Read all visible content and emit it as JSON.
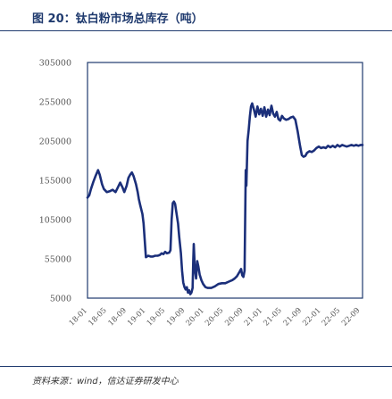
{
  "figure": {
    "title": "图 20：钛白粉市场总库存（吨）",
    "source": "资料来源：wind，信达证券研发中心"
  },
  "colors": {
    "line": "#1b2f7a",
    "frame": "#1f3a6e",
    "axis_text": "#555555"
  },
  "chart_data": {
    "type": "line",
    "title": "",
    "xlabel": "",
    "ylabel": "",
    "ylim": [
      5000,
      305000
    ],
    "yticks": [
      5000,
      55000,
      105000,
      155000,
      205000,
      255000,
      305000
    ],
    "ytick_labels": [
      "5000",
      "55000",
      "105000",
      "155000",
      "205000",
      "255000",
      "305000"
    ],
    "xlim": [
      2018.0,
      2022.71
    ],
    "xticks": [
      2018.0,
      2018.33,
      2018.67,
      2019.0,
      2019.33,
      2019.67,
      2020.0,
      2020.33,
      2020.67,
      2021.0,
      2021.33,
      2021.67,
      2022.0,
      2022.33,
      2022.67
    ],
    "xtick_labels": [
      "18-01",
      "18-05",
      "18-09",
      "19-01",
      "19-05",
      "19-09",
      "20-01",
      "20-05",
      "20-09",
      "21-01",
      "21-05",
      "21-09",
      "22-01",
      "22-05",
      "22-09"
    ],
    "grid": false,
    "legend": "none",
    "series": [
      {
        "x": [
          2018.0,
          2018.03,
          2018.06,
          2018.1,
          2018.14,
          2018.18,
          2018.21,
          2018.25,
          2018.28,
          2018.33,
          2018.38,
          2018.43,
          2018.48,
          2018.52,
          2018.56,
          2018.6,
          2018.63,
          2018.67,
          2018.7,
          2018.73,
          2018.76,
          2018.79,
          2018.83,
          2018.86,
          2018.88,
          2018.9,
          2018.92,
          2018.94,
          2018.96,
          2019.0,
          2019.04,
          2019.08,
          2019.12,
          2019.16,
          2019.2,
          2019.24,
          2019.27,
          2019.3,
          2019.33,
          2019.36,
          2019.4,
          2019.42,
          2019.44,
          2019.46,
          2019.48,
          2019.5,
          2019.52,
          2019.55,
          2019.57,
          2019.6,
          2019.62,
          2019.64,
          2019.66,
          2019.68,
          2019.7,
          2019.72,
          2019.74,
          2019.76,
          2019.78,
          2019.8,
          2019.81,
          2019.82,
          2019.84,
          2019.86,
          2019.88,
          2019.9,
          2019.92,
          2019.95,
          2019.98,
          2020.02,
          2020.06,
          2020.12,
          2020.18,
          2020.24,
          2020.3,
          2020.36,
          2020.42,
          2020.48,
          2020.52,
          2020.56,
          2020.6,
          2020.63,
          2020.65,
          2020.67,
          2020.69,
          2020.71,
          2020.72,
          2020.74,
          2020.76,
          2020.78,
          2020.8,
          2020.82,
          2020.85,
          2020.88,
          2020.91,
          2020.94,
          2020.97,
          2021.0,
          2021.03,
          2021.06,
          2021.09,
          2021.12,
          2021.15,
          2021.18,
          2021.21,
          2021.24,
          2021.27,
          2021.3,
          2021.33,
          2021.36,
          2021.4,
          2021.44,
          2021.48,
          2021.52,
          2021.56,
          2021.6,
          2021.64,
          2021.67,
          2021.7,
          2021.73,
          2021.76,
          2021.8,
          2021.84,
          2021.88,
          2021.92,
          2021.96,
          2022.0,
          2022.04,
          2022.08,
          2022.12,
          2022.16,
          2022.2,
          2022.24,
          2022.28,
          2022.32,
          2022.36,
          2022.4,
          2022.44,
          2022.48,
          2022.52,
          2022.56,
          2022.6,
          2022.64,
          2022.68,
          2022.71
        ],
        "values": [
          133000,
          136000,
          144000,
          153000,
          161000,
          168000,
          162000,
          150000,
          144000,
          140000,
          141000,
          143000,
          140000,
          146000,
          152000,
          146000,
          140000,
          148000,
          158000,
          162000,
          165000,
          160000,
          150000,
          140000,
          131000,
          124000,
          118000,
          112000,
          100000,
          57000,
          59000,
          58000,
          58000,
          59000,
          59000,
          60000,
          62000,
          61000,
          64000,
          62000,
          63000,
          66000,
          105000,
          126000,
          128000,
          125000,
          115000,
          100000,
          83000,
          62000,
          40000,
          25000,
          19000,
          16000,
          19000,
          12000,
          15000,
          10000,
          12000,
          18000,
          52000,
          74000,
          40000,
          30000,
          52000,
          45000,
          35000,
          28000,
          23000,
          19000,
          18000,
          18000,
          20000,
          23000,
          24000,
          24000,
          26000,
          28000,
          30000,
          33000,
          38000,
          42000,
          34000,
          32000,
          40000,
          168000,
          148000,
          205000,
          219000,
          236000,
          249000,
          253000,
          245000,
          236000,
          249000,
          239000,
          246000,
          237000,
          248000,
          236000,
          245000,
          238000,
          250000,
          240000,
          236000,
          242000,
          233000,
          231000,
          237000,
          234000,
          232000,
          233000,
          235000,
          236000,
          232000,
          217000,
          199000,
          187000,
          185000,
          186000,
          190000,
          192000,
          191000,
          193000,
          196000,
          198000,
          196000,
          197000,
          196000,
          199000,
          197000,
          199000,
          197000,
          200000,
          198000,
          200000,
          199000,
          198000,
          199000,
          200000,
          199000,
          200000,
          199000,
          200000,
          200000
        ]
      }
    ]
  }
}
